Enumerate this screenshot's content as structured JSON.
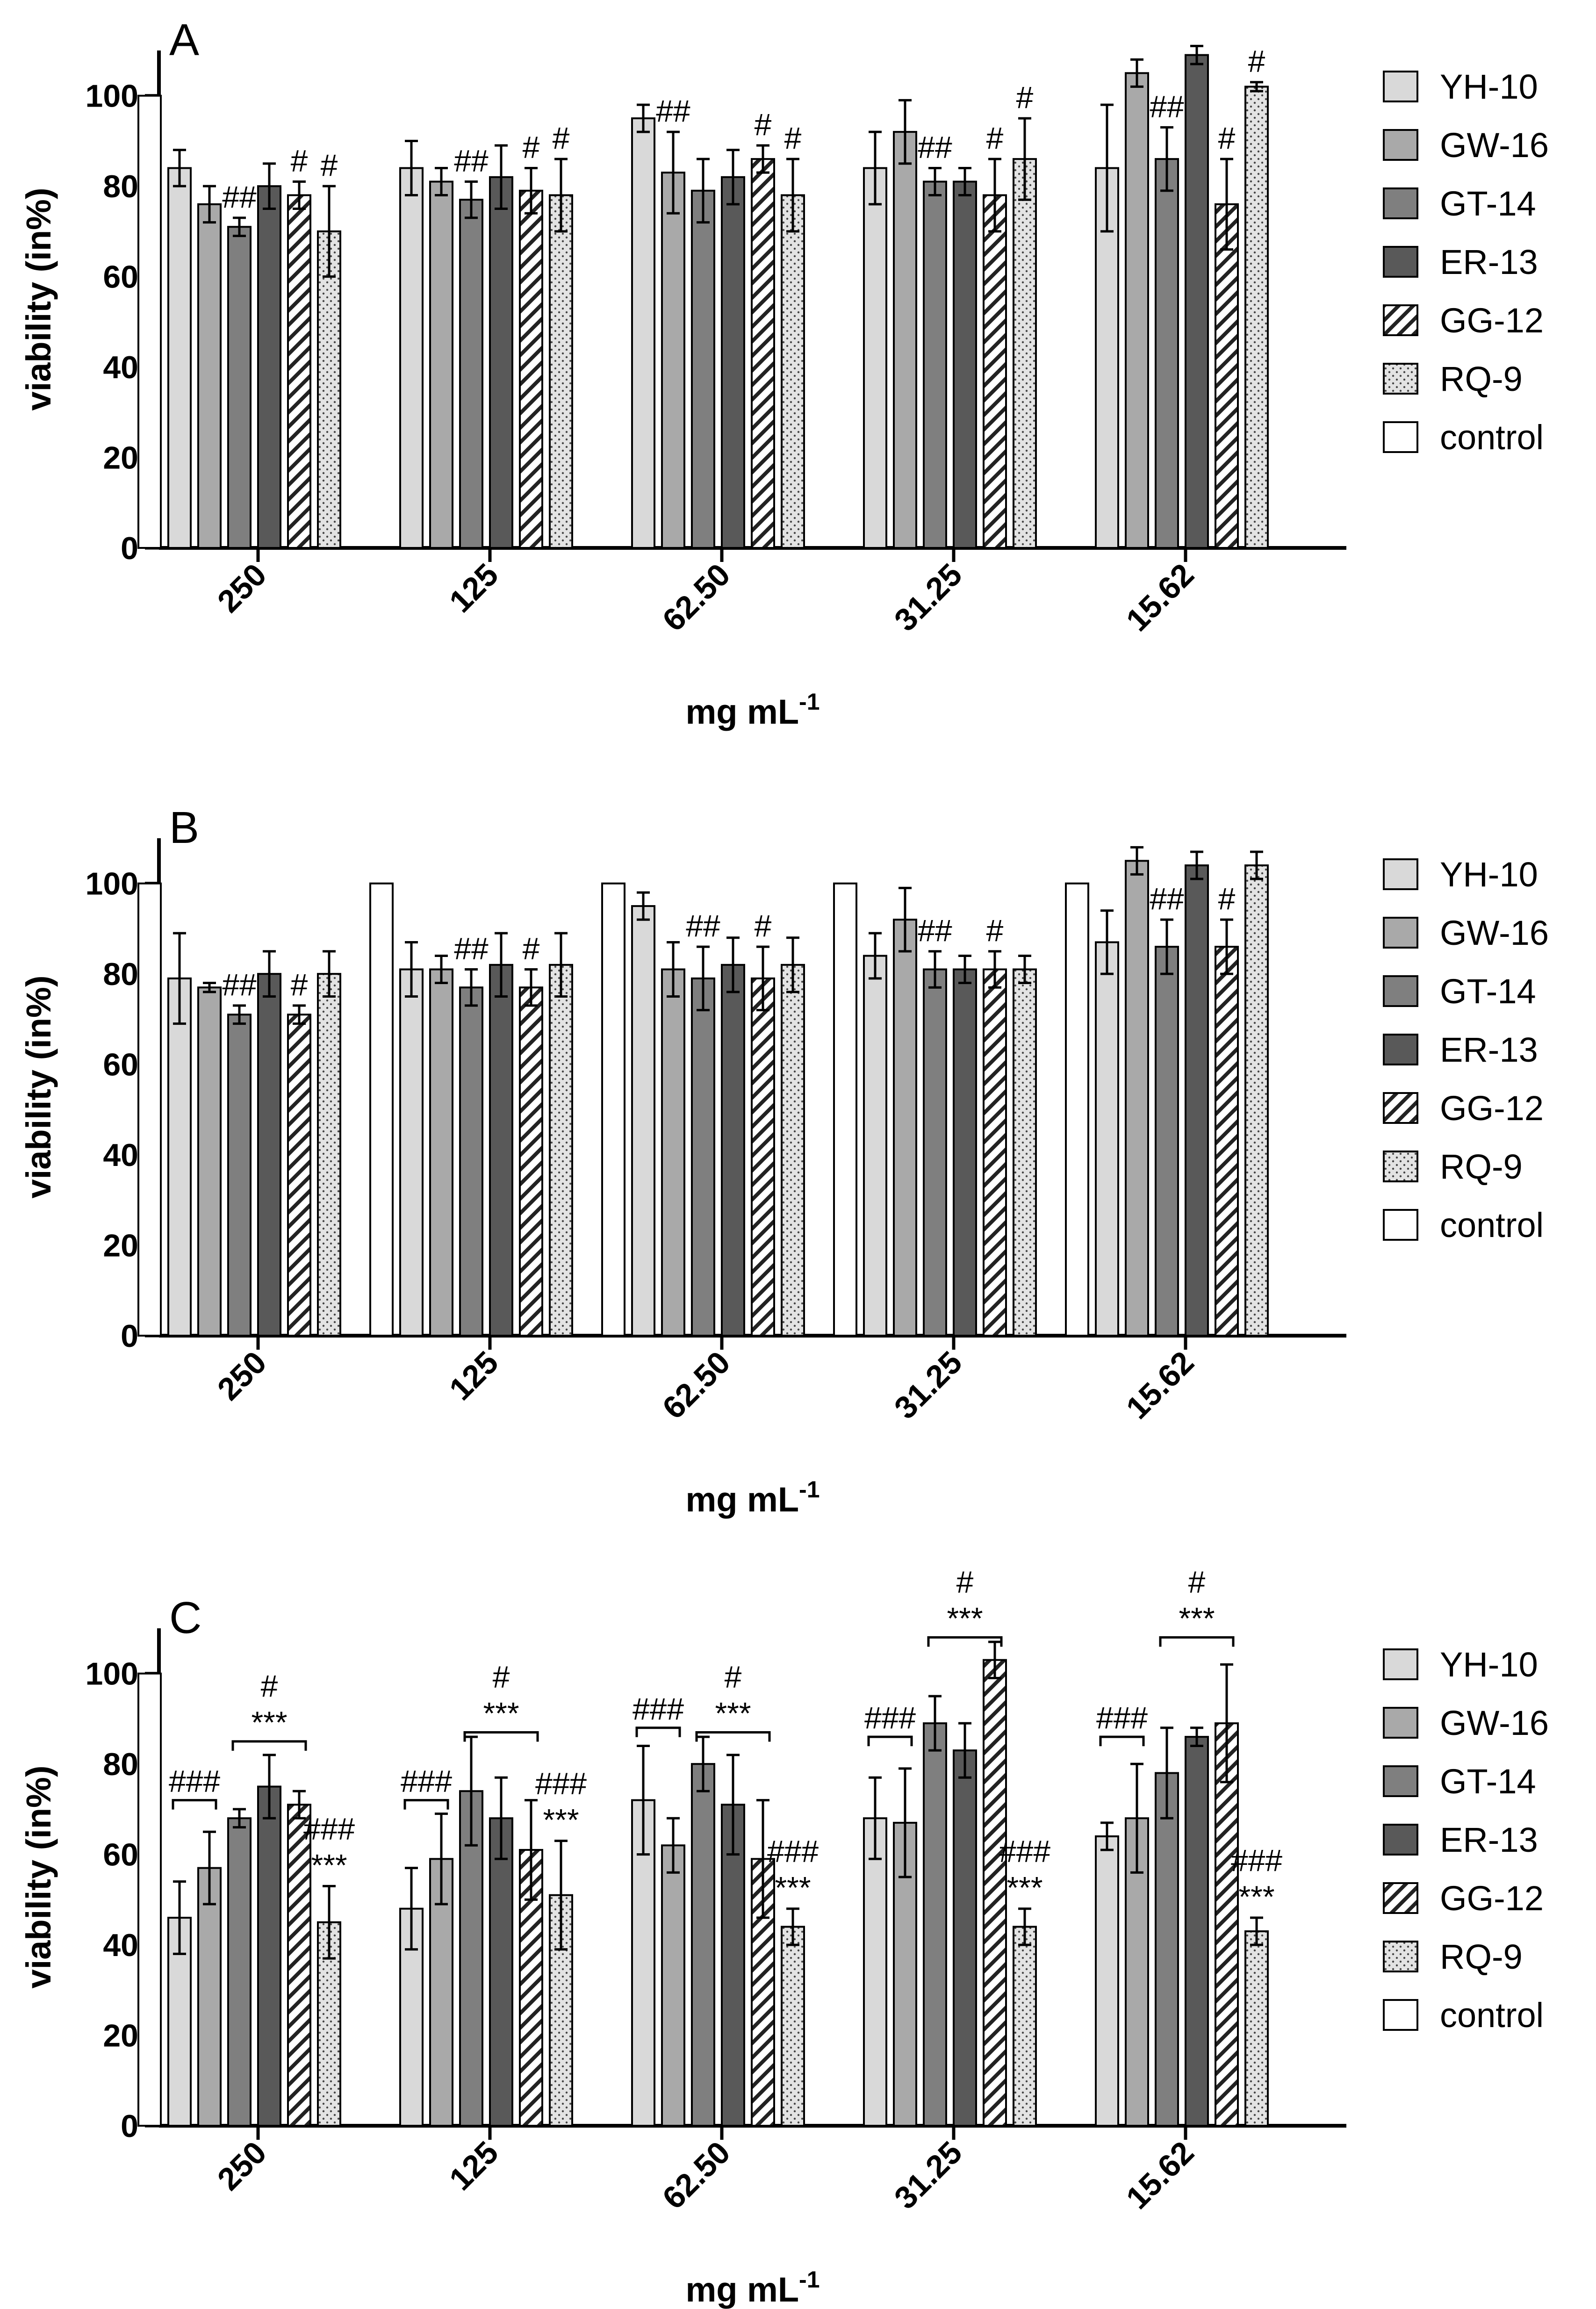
{
  "figure": {
    "panels": [
      "A",
      "B",
      "C"
    ]
  },
  "legend_series": [
    {
      "name": "YH-10",
      "pattern": "pat-yh"
    },
    {
      "name": "GW-16",
      "pattern": "pat-gw"
    },
    {
      "name": "GT-14",
      "pattern": "pat-gt"
    },
    {
      "name": "ER-13",
      "pattern": "pat-er"
    },
    {
      "name": "GG-12",
      "pattern": "pat-gg"
    },
    {
      "name": "RQ-9",
      "pattern": "pat-rq"
    },
    {
      "name": "control",
      "pattern": "pat-ctrl"
    }
  ],
  "chart_data": [
    {
      "panel": "A",
      "type": "bar",
      "ylabel": "viability (in%)",
      "xlabel": "mg mL",
      "xlabel_sup": "-1",
      "ylim": [
        0,
        110
      ],
      "yticks": [
        0,
        20,
        40,
        60,
        80,
        100
      ],
      "categories": [
        "250",
        "125",
        "62.50",
        "31.25",
        "15.62"
      ],
      "control": {
        "name": "control",
        "values": [
          100,
          null,
          null,
          null,
          null
        ]
      },
      "series": [
        {
          "name": "YH-10",
          "values": [
            84,
            84,
            95,
            84,
            84
          ],
          "errors": [
            4,
            6,
            3,
            8,
            14
          ]
        },
        {
          "name": "GW-16",
          "values": [
            76,
            81,
            83,
            92,
            105
          ],
          "errors": [
            4,
            3,
            9,
            7,
            3
          ]
        },
        {
          "name": "GT-14",
          "values": [
            71,
            77,
            79,
            81,
            86
          ],
          "errors": [
            2,
            4,
            7,
            3,
            7
          ]
        },
        {
          "name": "ER-13",
          "values": [
            80,
            82,
            82,
            81,
            109
          ],
          "errors": [
            5,
            7,
            6,
            3,
            2
          ]
        },
        {
          "name": "GG-12",
          "values": [
            78,
            79,
            86,
            78,
            76
          ],
          "errors": [
            3,
            5,
            3,
            8,
            10
          ]
        },
        {
          "name": "RQ-9",
          "values": [
            70,
            78,
            78,
            86,
            102
          ],
          "errors": [
            10,
            8,
            8,
            9,
            1
          ]
        }
      ],
      "annotations": [
        {
          "cat": 0,
          "series": 2,
          "text": "##"
        },
        {
          "cat": 0,
          "series": 4,
          "text": "#"
        },
        {
          "cat": 0,
          "series": 5,
          "text": "#"
        },
        {
          "cat": 1,
          "series": 2,
          "text": "##"
        },
        {
          "cat": 1,
          "series": 4,
          "text": "#"
        },
        {
          "cat": 1,
          "series": 5,
          "text": "#"
        },
        {
          "cat": 2,
          "series": 1,
          "text": "##"
        },
        {
          "cat": 2,
          "series": 4,
          "text": "#"
        },
        {
          "cat": 2,
          "series": 5,
          "text": "#"
        },
        {
          "cat": 3,
          "series": 2,
          "text": "##"
        },
        {
          "cat": 3,
          "series": 4,
          "text": "#"
        },
        {
          "cat": 3,
          "series": 5,
          "text": "#"
        },
        {
          "cat": 4,
          "series": 2,
          "text": "##"
        },
        {
          "cat": 4,
          "series": 4,
          "text": "#"
        },
        {
          "cat": 4,
          "series": 5,
          "text": "#"
        }
      ],
      "brackets": []
    },
    {
      "panel": "B",
      "type": "bar",
      "ylabel": "viability (in%)",
      "xlabel": "mg mL",
      "xlabel_sup": "-1",
      "ylim": [
        0,
        110
      ],
      "yticks": [
        0,
        20,
        40,
        60,
        80,
        100
      ],
      "categories": [
        "250",
        "125",
        "62.50",
        "31.25",
        "15.62"
      ],
      "control": {
        "name": "control",
        "values": [
          100,
          100,
          100,
          100,
          100
        ]
      },
      "series": [
        {
          "name": "YH-10",
          "values": [
            79,
            81,
            95,
            84,
            87
          ],
          "errors": [
            10,
            6,
            3,
            5,
            7
          ]
        },
        {
          "name": "GW-16",
          "values": [
            77,
            81,
            81,
            92,
            105
          ],
          "errors": [
            1,
            3,
            6,
            7,
            3
          ]
        },
        {
          "name": "GT-14",
          "values": [
            71,
            77,
            79,
            81,
            86
          ],
          "errors": [
            2,
            4,
            7,
            4,
            6
          ]
        },
        {
          "name": "ER-13",
          "values": [
            80,
            82,
            82,
            81,
            104
          ],
          "errors": [
            5,
            7,
            6,
            3,
            3
          ]
        },
        {
          "name": "GG-12",
          "values": [
            71,
            77,
            79,
            81,
            86
          ],
          "errors": [
            2,
            4,
            7,
            4,
            6
          ]
        },
        {
          "name": "RQ-9",
          "values": [
            80,
            82,
            82,
            81,
            104
          ],
          "errors": [
            5,
            7,
            6,
            3,
            3
          ]
        }
      ],
      "annotations": [
        {
          "cat": 0,
          "series": 2,
          "text": "##"
        },
        {
          "cat": 0,
          "series": 4,
          "text": "#"
        },
        {
          "cat": 1,
          "series": 2,
          "text": "##"
        },
        {
          "cat": 1,
          "series": 4,
          "text": "#"
        },
        {
          "cat": 2,
          "series": 2,
          "text": "##"
        },
        {
          "cat": 2,
          "series": 4,
          "text": "#"
        },
        {
          "cat": 3,
          "series": 2,
          "text": "##"
        },
        {
          "cat": 3,
          "series": 4,
          "text": "#"
        },
        {
          "cat": 4,
          "series": 2,
          "text": "##"
        },
        {
          "cat": 4,
          "series": 4,
          "text": "#"
        }
      ],
      "brackets": []
    },
    {
      "panel": "C",
      "type": "bar",
      "ylabel": "viability (in%)",
      "xlabel": "mg mL",
      "xlabel_sup": "-1",
      "ylim": [
        0,
        110
      ],
      "yticks": [
        0,
        20,
        40,
        60,
        80,
        100
      ],
      "categories": [
        "250",
        "125",
        "62.50",
        "31.25",
        "15.62"
      ],
      "control": {
        "name": "control",
        "values": [
          100,
          null,
          null,
          null,
          null
        ]
      },
      "series": [
        {
          "name": "YH-10",
          "values": [
            46,
            48,
            72,
            68,
            64
          ],
          "errors": [
            8,
            9,
            12,
            9,
            3
          ]
        },
        {
          "name": "GW-16",
          "values": [
            57,
            59,
            62,
            67,
            68
          ],
          "errors": [
            8,
            10,
            6,
            12,
            12
          ]
        },
        {
          "name": "GT-14",
          "values": [
            68,
            74,
            80,
            89,
            78
          ],
          "errors": [
            2,
            12,
            6,
            6,
            10
          ]
        },
        {
          "name": "ER-13",
          "values": [
            75,
            68,
            71,
            83,
            86
          ],
          "errors": [
            7,
            9,
            11,
            6,
            2
          ]
        },
        {
          "name": "GG-12",
          "values": [
            71,
            61,
            59,
            103,
            89
          ],
          "errors": [
            3,
            11,
            13,
            4,
            13
          ]
        },
        {
          "name": "RQ-9",
          "values": [
            45,
            51,
            44,
            44,
            43
          ],
          "errors": [
            8,
            12,
            4,
            4,
            3
          ]
        }
      ],
      "annotations": [
        {
          "cat": 0,
          "series": 5,
          "lines": [
            "###",
            "***"
          ]
        },
        {
          "cat": 1,
          "series": 5,
          "lines": [
            "###",
            "***"
          ]
        },
        {
          "cat": 2,
          "series": 5,
          "lines": [
            "###",
            "***"
          ]
        },
        {
          "cat": 3,
          "series": 5,
          "lines": [
            "###",
            "***"
          ]
        },
        {
          "cat": 4,
          "series": 5,
          "lines": [
            "###",
            "***"
          ]
        }
      ],
      "brackets": [
        {
          "cat": 0,
          "from": 0,
          "to": 1,
          "y": 72,
          "lines": [
            "###"
          ]
        },
        {
          "cat": 0,
          "from": 2,
          "to": 4,
          "y": 85,
          "lines": [
            "#",
            "***"
          ]
        },
        {
          "cat": 1,
          "from": 0,
          "to": 1,
          "y": 72,
          "lines": [
            "###"
          ]
        },
        {
          "cat": 1,
          "from": 2,
          "to": 4,
          "y": 87,
          "lines": [
            "#",
            "***"
          ]
        },
        {
          "cat": 2,
          "from": 0,
          "to": 1,
          "y": 88,
          "lines": [
            "###"
          ]
        },
        {
          "cat": 2,
          "from": 2,
          "to": 4,
          "y": 87,
          "lines": [
            "#",
            "***"
          ]
        },
        {
          "cat": 3,
          "from": 0,
          "to": 1,
          "y": 86,
          "lines": [
            "###"
          ]
        },
        {
          "cat": 3,
          "from": 2,
          "to": 4,
          "y": 108,
          "lines": [
            "#",
            "***"
          ]
        },
        {
          "cat": 4,
          "from": 0,
          "to": 1,
          "y": 86,
          "lines": [
            "###"
          ]
        },
        {
          "cat": 4,
          "from": 2,
          "to": 4,
          "y": 108,
          "lines": [
            "#",
            "***"
          ]
        }
      ]
    }
  ]
}
